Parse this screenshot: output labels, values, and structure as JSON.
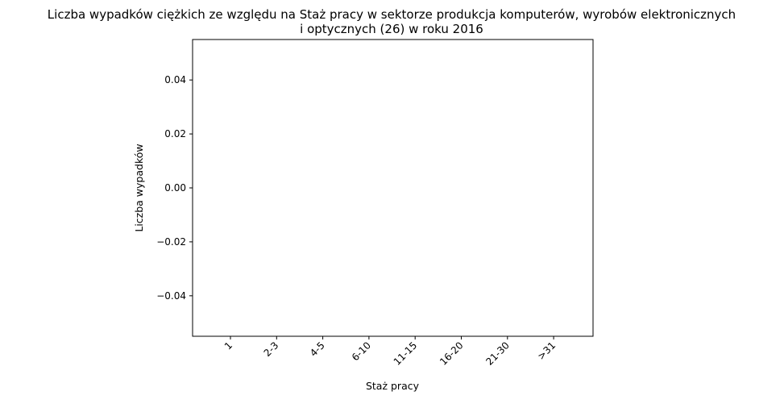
{
  "chart_data": {
    "type": "bar",
    "title": "Liczba wypadków ciężkich ze względu na Staż pracy w sektorze produkcja komputerów, wyrobów elektronicznych\ni optycznych (26)  w roku 2016",
    "xlabel": "Staż pracy",
    "ylabel": "Liczba wypadków",
    "categories": [
      "1",
      "2-3",
      "4-5",
      "6-10",
      "11-15",
      "16-20",
      "21-30",
      ">31"
    ],
    "values": [
      0,
      0,
      0,
      0,
      0,
      0,
      0,
      0
    ],
    "ylim": [
      -0.055,
      0.055
    ],
    "yticks": [
      -0.04,
      -0.02,
      0.0,
      0.02,
      0.04
    ],
    "ytick_labels": [
      "−0.04",
      "−0.02",
      "0.00",
      "0.02",
      "0.04"
    ],
    "xtick_rotation": 45,
    "grid": false,
    "legend": "none",
    "colors": {
      "bar": "#1f77b4",
      "axes": "#000000",
      "background": "#ffffff"
    }
  }
}
